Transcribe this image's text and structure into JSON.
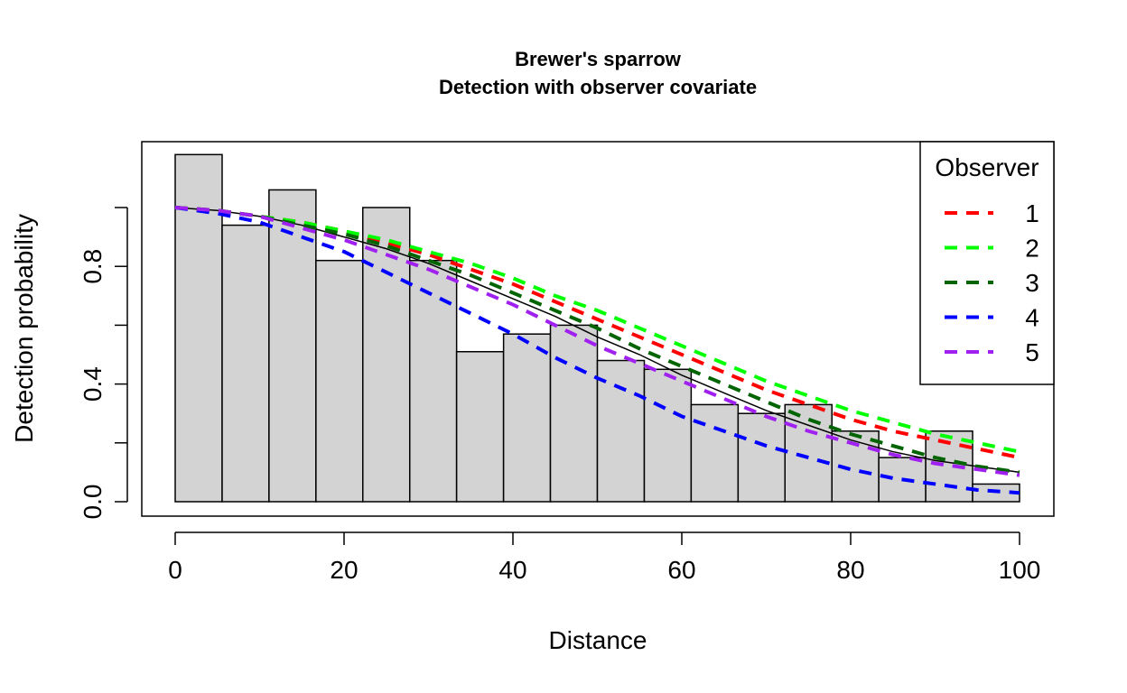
{
  "chart_data": {
    "type": "bar",
    "title": "Brewer's sparrow",
    "subtitle": "Detection with observer covariate",
    "xlabel": "Distance",
    "ylabel": "Detection probability",
    "xlim": [
      0,
      100
    ],
    "ylim": [
      0,
      1.0
    ],
    "x_ticks": [
      0,
      20,
      40,
      60,
      80,
      100
    ],
    "y_ticks": [
      0.0,
      0.2,
      0.4,
      0.6,
      0.8,
      1.0
    ],
    "y_tick_labels": [
      "0.0",
      "",
      "0.4",
      "",
      "0.8",
      ""
    ],
    "grid": false,
    "histogram": {
      "bin_edges": [
        0,
        5.56,
        11.11,
        16.67,
        22.22,
        27.78,
        33.33,
        38.89,
        44.44,
        50,
        55.56,
        61.11,
        66.67,
        72.22,
        77.78,
        83.33,
        88.89,
        94.44,
        100
      ],
      "values": [
        1.18,
        0.94,
        1.06,
        0.82,
        1.0,
        0.82,
        0.51,
        0.57,
        0.6,
        0.48,
        0.45,
        0.33,
        0.3,
        0.33,
        0.24,
        0.15,
        0.24,
        0.06
      ],
      "fill": "#d3d3d3"
    },
    "average_curve": {
      "x": [
        0,
        5,
        10,
        15,
        20,
        25,
        30,
        35,
        40,
        45,
        50,
        55,
        60,
        65,
        70,
        75,
        80,
        85,
        90,
        95,
        100
      ],
      "y": [
        1.0,
        0.99,
        0.97,
        0.94,
        0.9,
        0.86,
        0.81,
        0.75,
        0.69,
        0.63,
        0.56,
        0.5,
        0.43,
        0.37,
        0.31,
        0.26,
        0.21,
        0.17,
        0.14,
        0.12,
        0.1
      ],
      "color": "#000000"
    },
    "legend": {
      "title": "Observer",
      "position": "top-right"
    },
    "series": [
      {
        "name": "1",
        "color": "#ff0000",
        "x": [
          0,
          5,
          10,
          15,
          20,
          25,
          30,
          35,
          40,
          45,
          50,
          55,
          60,
          65,
          70,
          75,
          80,
          85,
          90,
          95,
          100
        ],
        "y": [
          1.0,
          0.99,
          0.97,
          0.95,
          0.92,
          0.88,
          0.84,
          0.79,
          0.74,
          0.68,
          0.62,
          0.56,
          0.5,
          0.44,
          0.38,
          0.33,
          0.28,
          0.24,
          0.21,
          0.18,
          0.15
        ]
      },
      {
        "name": "2",
        "color": "#00ff00",
        "x": [
          0,
          5,
          10,
          15,
          20,
          25,
          30,
          35,
          40,
          45,
          50,
          55,
          60,
          65,
          70,
          75,
          80,
          85,
          90,
          95,
          100
        ],
        "y": [
          1.0,
          0.99,
          0.97,
          0.95,
          0.92,
          0.89,
          0.85,
          0.81,
          0.76,
          0.7,
          0.65,
          0.59,
          0.53,
          0.47,
          0.41,
          0.36,
          0.31,
          0.27,
          0.23,
          0.2,
          0.17
        ]
      },
      {
        "name": "3",
        "color": "#006400",
        "x": [
          0,
          5,
          10,
          15,
          20,
          25,
          30,
          35,
          40,
          45,
          50,
          55,
          60,
          65,
          70,
          75,
          80,
          85,
          90,
          95,
          100
        ],
        "y": [
          1.0,
          0.99,
          0.97,
          0.94,
          0.91,
          0.87,
          0.82,
          0.77,
          0.71,
          0.65,
          0.59,
          0.52,
          0.46,
          0.4,
          0.34,
          0.28,
          0.23,
          0.19,
          0.15,
          0.12,
          0.1
        ]
      },
      {
        "name": "4",
        "color": "#0000ff",
        "x": [
          0,
          5,
          10,
          15,
          20,
          25,
          30,
          35,
          40,
          45,
          50,
          55,
          60,
          65,
          70,
          75,
          80,
          85,
          90,
          95,
          100
        ],
        "y": [
          1.0,
          0.98,
          0.95,
          0.9,
          0.85,
          0.78,
          0.71,
          0.64,
          0.57,
          0.49,
          0.42,
          0.36,
          0.29,
          0.24,
          0.19,
          0.15,
          0.11,
          0.08,
          0.06,
          0.04,
          0.03
        ]
      },
      {
        "name": "5",
        "color": "#a020f0",
        "x": [
          0,
          5,
          10,
          15,
          20,
          25,
          30,
          35,
          40,
          45,
          50,
          55,
          60,
          65,
          70,
          75,
          80,
          85,
          90,
          95,
          100
        ],
        "y": [
          1.0,
          0.99,
          0.97,
          0.93,
          0.89,
          0.84,
          0.79,
          0.73,
          0.67,
          0.6,
          0.53,
          0.47,
          0.41,
          0.35,
          0.29,
          0.24,
          0.2,
          0.16,
          0.13,
          0.11,
          0.09
        ]
      }
    ]
  }
}
